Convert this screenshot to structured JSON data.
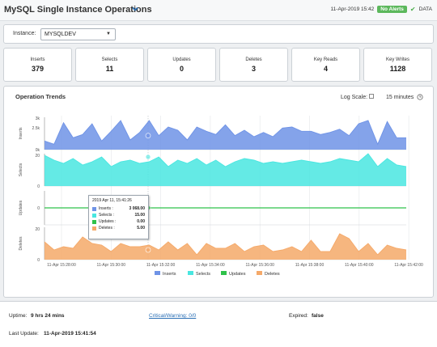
{
  "header": {
    "title": "MySQL Single Instance Operations",
    "datetime": "11-Apr-2019 15:42",
    "alert_badge": "No Alerts",
    "data_label": "DATA"
  },
  "instance": {
    "label": "Instance:",
    "value": "MYSQLDEV"
  },
  "kpis": [
    {
      "label": "Inserts",
      "value": "379"
    },
    {
      "label": "Selects",
      "value": "11"
    },
    {
      "label": "Updates",
      "value": "0"
    },
    {
      "label": "Deletes",
      "value": "3"
    },
    {
      "label": "Key Reads",
      "value": "4"
    },
    {
      "label": "Key Writes",
      "value": "1128"
    }
  ],
  "trends": {
    "title": "Operation Trends",
    "log_scale_label": "Log Scale:",
    "log_scale_checked": false,
    "time_range": "15 minutes"
  },
  "tooltip": {
    "time": "2019 Apr 11, 15:41:26",
    "rows": [
      {
        "name": "Inserts :",
        "value": "3 068.00",
        "color": "#6f93e6"
      },
      {
        "name": "Selects :",
        "value": "15.00",
        "color": "#49e6e0"
      },
      {
        "name": "Updates :",
        "value": "0.00",
        "color": "#2fc24a"
      },
      {
        "name": "Deletes :",
        "value": "5.00",
        "color": "#f5a969"
      }
    ]
  },
  "chart_data": {
    "type": "area",
    "x_tick_labels": [
      "11-Apr 15:28:00",
      "11-Apr 15:30:00",
      "11-Apr 15:32:00",
      "11-Apr 15:34:00",
      "11-Apr 15:36:00",
      "11-Apr 15:38:00",
      "11-Apr 15:40:00",
      "11-Apr 15:42:00"
    ],
    "panels": [
      {
        "name": "Inserts",
        "ylabel": "Inserts",
        "color": "#6f93e6",
        "y_ticks": [
          "3k",
          "2.5k",
          "0k"
        ],
        "ylim": [
          0,
          3000
        ],
        "values": [
          800,
          500,
          2500,
          1100,
          1400,
          2400,
          800,
          1700,
          2700,
          900,
          1600,
          2700,
          1300,
          2100,
          1800,
          900,
          2100,
          1700,
          1400,
          2300,
          1300,
          1800,
          1200,
          1600,
          1200,
          2000,
          2100,
          1700,
          1700,
          1400,
          1600,
          1900,
          1300,
          2400,
          2700,
          500,
          2600,
          1100,
          1100
        ]
      },
      {
        "name": "Selects",
        "ylabel": "Selects",
        "color": "#49e6e0",
        "y_ticks": [
          "20",
          "0"
        ],
        "ylim": [
          0,
          20
        ],
        "values": [
          19,
          16,
          14,
          17,
          13,
          15,
          18,
          12,
          15,
          16,
          14,
          15,
          18,
          12,
          16,
          14,
          17,
          13,
          16,
          12,
          15,
          17,
          16,
          14,
          15,
          14,
          15,
          16,
          15,
          14,
          15,
          17,
          16,
          15,
          20,
          12,
          17,
          13,
          12
        ]
      },
      {
        "name": "Updates",
        "ylabel": "Updates",
        "color": "#2fc24a",
        "y_ticks": [
          "0"
        ],
        "ylim": [
          -1,
          1
        ],
        "values": [
          0,
          0,
          0,
          0,
          0,
          0,
          0,
          0,
          0,
          0,
          0,
          0,
          0,
          0,
          0,
          0,
          0,
          0,
          0,
          0,
          0,
          0,
          0,
          0,
          0,
          0,
          0,
          0,
          0,
          0,
          0,
          0,
          0,
          0,
          0,
          0,
          0,
          0,
          0
        ]
      },
      {
        "name": "Deletes",
        "ylabel": "Deletes",
        "color": "#f5a969",
        "y_ticks": [
          "20",
          "0"
        ],
        "ylim": [
          0,
          20
        ],
        "values": [
          11,
          6,
          8,
          7,
          14,
          10,
          9,
          5,
          10,
          8,
          8,
          9,
          6,
          11,
          6,
          10,
          3,
          10,
          7,
          7,
          10,
          5,
          8,
          9,
          5,
          6,
          8,
          5,
          12,
          5,
          5,
          16,
          13,
          5,
          10,
          3,
          9,
          7,
          6
        ]
      }
    ],
    "legend": [
      "Inserts",
      "Selects",
      "Updates",
      "Deletes"
    ]
  },
  "footer": {
    "uptime_label": "Uptime:",
    "uptime_value": "9 hrs 24 mins",
    "critical_link": "Critical/Warning: 0/0",
    "expired_label": "Expired:",
    "expired_value": "false",
    "last_update_label": "Last Update:",
    "last_update_value": "11-Apr-2019 15:41:54"
  }
}
